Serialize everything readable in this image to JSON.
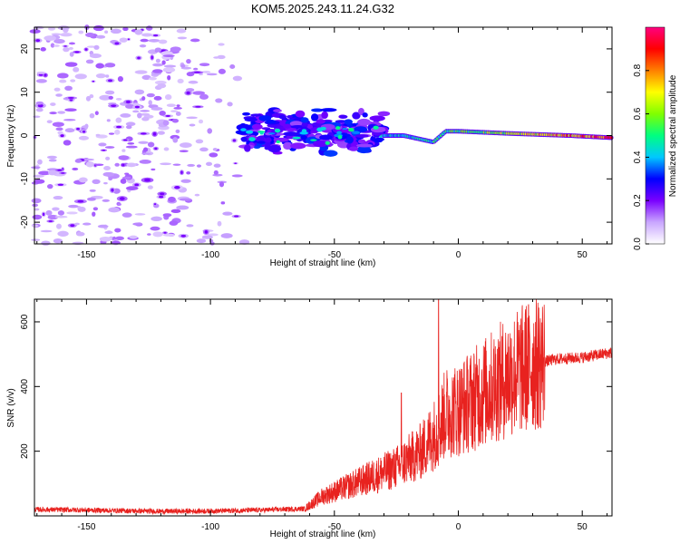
{
  "title": "KOM5.2025.243.11.24.G32",
  "chart_data": [
    {
      "type": "heatmap",
      "xlabel": "Height of straight line (km)",
      "ylabel": "Frequency (Hz)",
      "xlim": [
        -171,
        62
      ],
      "ylim": [
        -25,
        25
      ],
      "xticks": [
        -150,
        -100,
        -50,
        0,
        50
      ],
      "yticks": [
        -20,
        -10,
        0,
        10,
        20
      ],
      "colorbar": {
        "label": "Normalized spectral amplitude",
        "range": [
          0,
          1
        ],
        "ticks": [
          0.0,
          0.2,
          0.4,
          0.6,
          0.8
        ],
        "tick_labels": [
          "0.0",
          "0.2",
          "0.4",
          "0.6",
          "0.8"
        ],
        "colors": [
          "#ffffff",
          "#c9a6ff",
          "#7a00ff",
          "#0000ff",
          "#00c8ff",
          "#00ff80",
          "#80ff00",
          "#ffff00",
          "#ff8000",
          "#ff0000",
          "#ff0080"
        ]
      },
      "features": [
        {
          "name": "noise background",
          "x_range": [
            -171,
            -83
          ],
          "freq_range": [
            -25,
            25
          ],
          "amplitude": 0.1
        },
        {
          "name": "blob cluster",
          "x_range": [
            -87,
            -30
          ],
          "freq_range": [
            -5,
            6
          ],
          "amplitude": 0.22
        },
        {
          "name": "carrier line",
          "x_range": [
            -30,
            62
          ],
          "freq": [
            [
              -22,
              0
            ],
            [
              -10,
              -1.5
            ],
            [
              -5,
              1
            ],
            [
              0,
              1
            ],
            [
              20,
              0.5
            ],
            [
              45,
              0
            ],
            [
              62,
              -0.5
            ]
          ],
          "amplitude": [
            0.45,
            0.98
          ]
        }
      ]
    },
    {
      "type": "line",
      "xlabel": "Height of straight line (km)",
      "ylabel": "SNR (v/v)",
      "xlim": [
        -171,
        62
      ],
      "ylim": [
        0,
        670
      ],
      "xticks": [
        -150,
        -100,
        -50,
        0,
        50
      ],
      "yticks": [
        200,
        400,
        600
      ],
      "color": "#e8221f",
      "series": [
        {
          "name": "SNR",
          "x": [
            -171,
            -150,
            -120,
            -100,
            -80,
            -62,
            -55,
            -45,
            -35,
            -25,
            -15,
            -8,
            -5,
            0,
            10,
            20,
            30,
            40,
            50,
            62
          ],
          "values": [
            20,
            18,
            14,
            15,
            18,
            22,
            60,
            90,
            120,
            150,
            200,
            270,
            320,
            330,
            380,
            430,
            470,
            485,
            490,
            505
          ],
          "spikes": [
            {
              "x": -23,
              "y": 380
            },
            {
              "x": -8,
              "y": 670
            }
          ]
        }
      ]
    }
  ]
}
